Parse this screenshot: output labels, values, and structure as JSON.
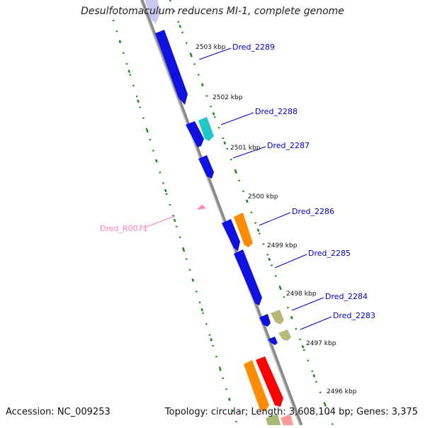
{
  "title": "Desulfotomaculum reducens MI-1, complete genome",
  "accession": "Accession: NC_009253",
  "topology": "Topology: circular; Length: 3,608,104 bp; Genes: 3,375",
  "colors": {
    "backbone": "#8a8a8a",
    "tick_dots": "#1a8a1a",
    "gene_link": "#0000cc",
    "rna_link": "#ff7fbf"
  },
  "ticks": [
    "2503 kbp",
    "2502 kbp",
    "2501 kbp",
    "2500 kbp",
    "2499 kbp",
    "2498 kbp",
    "2497 kbp",
    "2496 kbp"
  ],
  "gene_labels": [
    "Dred_2289",
    "Dred_2288",
    "Dred_2287",
    "Dred_2286",
    "Dred_2285",
    "Dred_2284",
    "Dred_2283"
  ],
  "rna_label": "Dred_R0071"
}
